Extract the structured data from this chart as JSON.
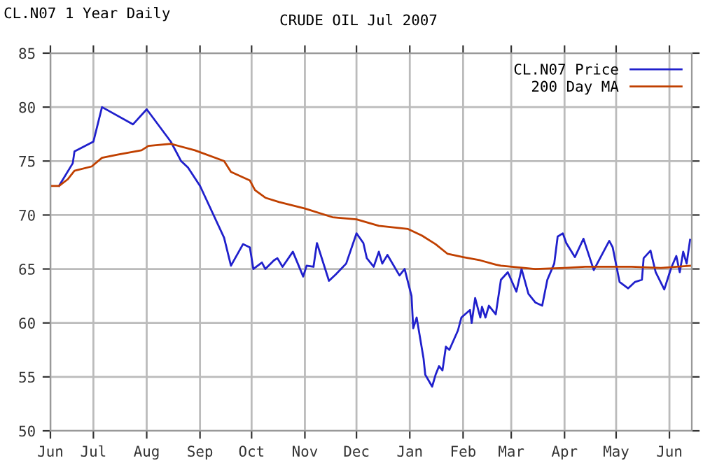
{
  "chart_data": {
    "type": "line",
    "title": "CRUDE OIL Jul 2007",
    "subtitle": "CL.N07 1 Year Daily",
    "xlim": [
      "2006-06-06",
      "2007-06-14"
    ],
    "ylim": [
      50,
      85
    ],
    "yticks": [
      50,
      55,
      60,
      65,
      70,
      75,
      80,
      85
    ],
    "xticks": [
      {
        "value": "2006-06-06",
        "label": "Jun"
      },
      {
        "value": "2006-07-01",
        "label": "Jul"
      },
      {
        "value": "2006-08-01",
        "label": "Aug"
      },
      {
        "value": "2006-09-01",
        "label": "Sep"
      },
      {
        "value": "2006-10-01",
        "label": "Oct"
      },
      {
        "value": "2006-11-01",
        "label": "Nov"
      },
      {
        "value": "2006-12-01",
        "label": "Dec"
      },
      {
        "value": "2007-01-01",
        "label": "Jan"
      },
      {
        "value": "2007-02-01",
        "label": "Feb"
      },
      {
        "value": "2007-03-01",
        "label": "Mar"
      },
      {
        "value": "2007-04-01",
        "label": "Apr"
      },
      {
        "value": "2007-05-01",
        "label": "May"
      },
      {
        "value": "2007-06-01",
        "label": "Jun"
      }
    ],
    "grid": true,
    "legend": "top right",
    "line_style": "solid",
    "marker": "none",
    "series": [
      {
        "name": "CL.N07 Price",
        "color": "#2020cc",
        "x": [
          "2006-06-11",
          "2006-06-19",
          "2006-06-20",
          "2006-07-01",
          "2006-07-06",
          "2006-07-24",
          "2006-08-01",
          "2006-08-15",
          "2006-08-21",
          "2006-08-25",
          "2006-09-01",
          "2006-09-15",
          "2006-09-19",
          "2006-09-26",
          "2006-09-30",
          "2006-10-02",
          "2006-10-07",
          "2006-10-09",
          "2006-10-14",
          "2006-10-16",
          "2006-10-19",
          "2006-10-25",
          "2006-10-31",
          "2006-11-02",
          "2006-11-06",
          "2006-11-08",
          "2006-11-15",
          "2006-11-19",
          "2006-11-25",
          "2006-12-01",
          "2006-12-05",
          "2006-12-07",
          "2006-12-11",
          "2006-12-14",
          "2006-12-16",
          "2006-12-19",
          "2006-12-26",
          "2006-12-29",
          "2007-01-02",
          "2007-01-03",
          "2007-01-05",
          "2007-01-09",
          "2007-01-10",
          "2007-01-14",
          "2007-01-16",
          "2007-01-18",
          "2007-01-20",
          "2007-01-22",
          "2007-01-24",
          "2007-01-29",
          "2007-01-31",
          "2007-02-05",
          "2007-02-06",
          "2007-02-08",
          "2007-02-11",
          "2007-02-12",
          "2007-02-14",
          "2007-02-16",
          "2007-02-20",
          "2007-02-23",
          "2007-02-27",
          "2007-03-04",
          "2007-03-07",
          "2007-03-11",
          "2007-03-15",
          "2007-03-19",
          "2007-03-22",
          "2007-03-26",
          "2007-03-28",
          "2007-03-31",
          "2007-04-02",
          "2007-04-07",
          "2007-04-12",
          "2007-04-18",
          "2007-04-25",
          "2007-04-27",
          "2007-04-29",
          "2007-05-03",
          "2007-05-08",
          "2007-05-12",
          "2007-05-16",
          "2007-05-17",
          "2007-05-21",
          "2007-05-24",
          "2007-05-29",
          "2007-06-02",
          "2007-06-05",
          "2007-06-07",
          "2007-06-09",
          "2007-06-11",
          "2007-06-13"
        ],
        "values": [
          72.7,
          74.8,
          75.9,
          76.8,
          80.0,
          78.4,
          79.8,
          76.8,
          75.0,
          74.4,
          72.7,
          67.9,
          65.3,
          67.3,
          67.0,
          65.0,
          65.6,
          65.0,
          65.8,
          66.0,
          65.2,
          66.6,
          64.3,
          65.3,
          65.2,
          67.4,
          63.9,
          64.5,
          65.5,
          68.3,
          67.4,
          66.0,
          65.2,
          66.6,
          65.5,
          66.3,
          64.4,
          65.0,
          62.5,
          59.5,
          60.5,
          56.7,
          55.2,
          54.1,
          55.2,
          56.0,
          55.6,
          57.8,
          57.5,
          59.3,
          60.5,
          61.2,
          60.0,
          62.3,
          60.5,
          61.5,
          60.5,
          61.6,
          60.8,
          64.0,
          64.7,
          62.9,
          65.0,
          62.7,
          61.9,
          61.6,
          64.0,
          65.5,
          68.0,
          68.3,
          67.4,
          66.1,
          67.8,
          64.9,
          67.0,
          67.6,
          67.0,
          63.8,
          63.2,
          63.8,
          64.0,
          66.0,
          66.7,
          64.7,
          63.1,
          65.1,
          66.2,
          64.7,
          66.6,
          65.5,
          67.7
        ]
      },
      {
        "name": "200 Day MA",
        "color": "#c04000",
        "x": [
          "2006-06-06",
          "2006-06-11",
          "2006-06-16",
          "2006-06-20",
          "2006-06-30",
          "2006-07-06",
          "2006-07-15",
          "2006-07-29",
          "2006-08-02",
          "2006-08-15",
          "2006-08-29",
          "2006-09-15",
          "2006-09-19",
          "2006-09-30",
          "2006-10-03",
          "2006-10-09",
          "2006-10-17",
          "2006-11-01",
          "2006-11-17",
          "2006-12-01",
          "2006-12-14",
          "2006-12-31",
          "2007-01-08",
          "2007-01-16",
          "2007-01-23",
          "2007-02-01",
          "2007-02-11",
          "2007-02-20",
          "2007-02-23",
          "2007-03-15",
          "2007-04-01",
          "2007-04-13",
          "2007-05-10",
          "2007-05-27",
          "2007-06-13"
        ],
        "values": [
          72.7,
          72.7,
          73.3,
          74.1,
          74.5,
          75.3,
          75.6,
          76.0,
          76.4,
          76.6,
          76.0,
          75.0,
          74.0,
          73.2,
          72.3,
          71.6,
          71.2,
          70.6,
          69.8,
          69.6,
          69.0,
          68.7,
          68.1,
          67.3,
          66.4,
          66.1,
          65.8,
          65.4,
          65.3,
          65.0,
          65.1,
          65.2,
          65.2,
          65.1,
          65.3
        ]
      }
    ]
  }
}
